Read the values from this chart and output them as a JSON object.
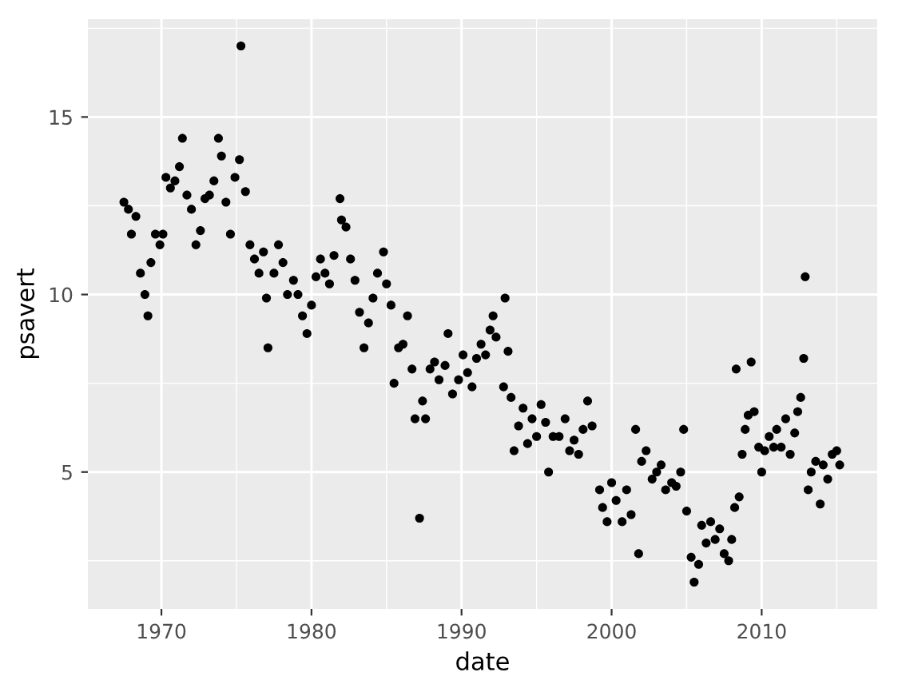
{
  "chart_data": {
    "type": "scatter",
    "xlabel": "date",
    "ylabel": "psavert",
    "color": "#000000",
    "marker": "circle",
    "grid": true,
    "xlim": [
      1965.1,
      2017.7
    ],
    "ylim": [
      1.145,
      17.755
    ],
    "xticks": [
      1970,
      1980,
      1990,
      2000,
      2010
    ],
    "yticks": [
      5,
      10,
      15
    ],
    "x": [
      1967.5,
      1967.8,
      1968.0,
      1968.3,
      1968.6,
      1968.9,
      1969.1,
      1969.3,
      1969.6,
      1969.9,
      1970.1,
      1970.3,
      1970.6,
      1970.9,
      1971.2,
      1971.4,
      1971.7,
      1972.0,
      1972.3,
      1972.6,
      1972.9,
      1973.2,
      1973.5,
      1973.8,
      1974.0,
      1974.3,
      1974.6,
      1974.9,
      1975.2,
      1975.3,
      1975.6,
      1975.9,
      1976.2,
      1976.5,
      1976.8,
      1977.0,
      1977.1,
      1977.5,
      1977.8,
      1978.1,
      1978.4,
      1978.8,
      1979.1,
      1979.4,
      1979.7,
      1980.0,
      1980.3,
      1980.6,
      1980.9,
      1981.2,
      1981.5,
      1981.9,
      1982.0,
      1982.3,
      1982.6,
      1982.9,
      1983.2,
      1983.5,
      1983.8,
      1984.1,
      1984.4,
      1984.8,
      1985.0,
      1985.3,
      1985.5,
      1985.8,
      1986.1,
      1986.4,
      1986.7,
      1986.9,
      1987.2,
      1987.4,
      1987.6,
      1987.9,
      1988.2,
      1988.5,
      1988.9,
      1989.1,
      1989.4,
      1989.8,
      1990.1,
      1990.4,
      1990.7,
      1991.0,
      1991.3,
      1991.6,
      1991.9,
      1992.1,
      1992.3,
      1992.9,
      1992.8,
      1993.1,
      1993.3,
      1993.5,
      1993.8,
      1994.1,
      1994.4,
      1994.7,
      1995.0,
      1995.3,
      1995.6,
      1995.8,
      1996.1,
      1996.5,
      1996.9,
      1997.2,
      1997.5,
      1997.8,
      1998.1,
      1998.4,
      1998.7,
      1999.2,
      1999.4,
      1999.7,
      2000.0,
      2000.3,
      2000.7,
      2001.0,
      2001.3,
      2001.6,
      2001.8,
      2002.0,
      2002.3,
      2002.7,
      2003.0,
      2003.3,
      2003.6,
      2004.0,
      2004.3,
      2004.6,
      2004.8,
      2005.0,
      2005.3,
      2005.5,
      2005.8,
      2006.0,
      2006.3,
      2006.6,
      2006.9,
      2007.2,
      2007.5,
      2007.8,
      2008.0,
      2008.2,
      2008.3,
      2008.5,
      2008.7,
      2008.9,
      2009.1,
      2009.3,
      2009.5,
      2009.8,
      2010.0,
      2010.2,
      2010.5,
      2010.8,
      2011.0,
      2011.3,
      2011.6,
      2011.9,
      2012.2,
      2012.4,
      2012.6,
      2012.8,
      2012.9,
      2013.1,
      2013.3,
      2013.6,
      2013.9,
      2014.1,
      2014.4,
      2014.7,
      2015.0,
      2015.2
    ],
    "values": [
      12.6,
      12.4,
      11.7,
      12.2,
      10.6,
      10.0,
      9.4,
      10.9,
      11.7,
      11.4,
      11.7,
      13.3,
      13.0,
      13.2,
      13.6,
      14.4,
      12.8,
      12.4,
      11.4,
      11.8,
      12.7,
      12.8,
      13.2,
      14.4,
      13.9,
      12.6,
      11.7,
      13.3,
      13.8,
      17.0,
      12.9,
      11.4,
      11.0,
      10.6,
      11.2,
      9.9,
      8.5,
      10.6,
      11.4,
      10.9,
      10.0,
      10.4,
      10.0,
      9.4,
      8.9,
      9.7,
      10.5,
      11.0,
      10.6,
      10.3,
      11.1,
      12.7,
      12.1,
      11.9,
      11.0,
      10.4,
      9.5,
      8.5,
      9.2,
      9.9,
      10.6,
      11.2,
      10.3,
      9.7,
      7.5,
      8.5,
      8.6,
      9.4,
      7.9,
      6.5,
      3.7,
      7.0,
      6.5,
      7.9,
      8.1,
      7.6,
      8.0,
      8.9,
      7.2,
      7.6,
      8.3,
      7.8,
      7.4,
      8.2,
      8.6,
      8.3,
      9.0,
      9.4,
      8.8,
      9.9,
      7.4,
      8.4,
      7.1,
      5.6,
      6.3,
      6.8,
      5.8,
      6.5,
      6.0,
      6.9,
      6.4,
      5.0,
      6.0,
      6.0,
      6.5,
      5.6,
      5.9,
      5.5,
      6.2,
      7.0,
      6.3,
      4.5,
      4.0,
      3.6,
      4.7,
      4.2,
      3.6,
      4.5,
      3.8,
      6.2,
      2.7,
      5.3,
      5.6,
      4.8,
      5.0,
      5.2,
      4.5,
      4.7,
      4.6,
      5.0,
      6.2,
      3.9,
      2.6,
      1.9,
      2.4,
      3.5,
      3.0,
      3.6,
      3.1,
      3.4,
      2.7,
      2.5,
      3.1,
      4.0,
      7.9,
      4.3,
      5.5,
      6.2,
      6.6,
      8.1,
      6.7,
      5.7,
      5.0,
      5.6,
      6.0,
      5.7,
      6.2,
      5.7,
      6.5,
      5.5,
      6.1,
      6.7,
      7.1,
      8.2,
      10.5,
      4.5,
      5.0,
      5.3,
      4.1,
      5.2,
      4.8,
      5.5,
      5.6,
      5.2
    ]
  }
}
